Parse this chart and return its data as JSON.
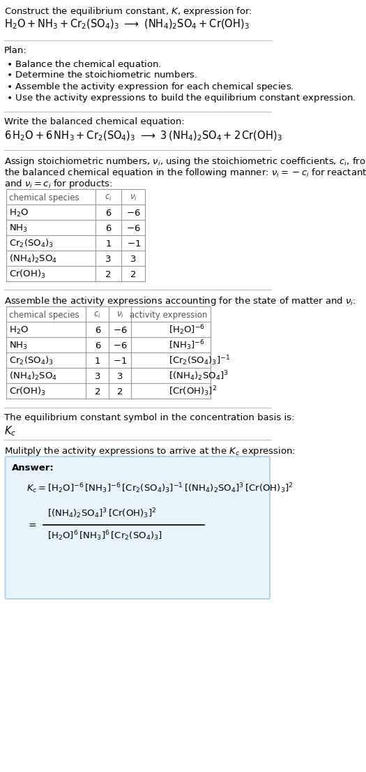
{
  "bg_color": "#ffffff",
  "text_color": "#000000",
  "gray_text": "#555555",
  "title_line1": "Construct the equilibrium constant, $K$, expression for:",
  "title_line2": "$\\mathrm{H_2O + NH_3 + Cr_2(SO_4)_3 \\longrightarrow (NH_4)_2SO_4 + Cr(OH)_3}$",
  "plan_header": "Plan:",
  "plan_items": [
    "\\textbf{\\textperiodcentered} Balance the chemical equation.",
    "\\textbf{\\textperiodcentered} Determine the stoichiometric numbers.",
    "\\textbf{\\textperiodcentered} Assemble the activity expression for each chemical species.",
    "\\textbf{\\textperiodcentered} Use the activity expressions to build the equilibrium constant expression."
  ],
  "balanced_eq_header": "Write the balanced chemical equation:",
  "balanced_eq": "$6\\,\\mathrm{H_2O + 6\\,NH_3 + Cr_2(SO_4)_3 \\longrightarrow 3\\,(NH_4)_2SO_4 + 2\\,Cr(OH)_3}$",
  "stoich_header": "Assign stoichiometric numbers, $\\nu_i$, using the stoichiometric coefficients, $c_i$, from the balanced chemical equation in the following manner: $\\nu_i = -c_i$ for reactants and $\\nu_i = c_i$ for products:",
  "table1_headers": [
    "chemical species",
    "$c_i$",
    "$\\nu_i$"
  ],
  "table1_rows": [
    [
      "$\\mathrm{H_2O}$",
      "6",
      "$-6$"
    ],
    [
      "$\\mathrm{NH_3}$",
      "6",
      "$-6$"
    ],
    [
      "$\\mathrm{Cr_2(SO_4)_3}$",
      "1",
      "$-1$"
    ],
    [
      "$\\mathrm{(NH_4)_2SO_4}$",
      "3",
      "3"
    ],
    [
      "$\\mathrm{Cr(OH)_3}$",
      "2",
      "2"
    ]
  ],
  "activity_header": "Assemble the activity expressions accounting for the state of matter and $\\nu_i$:",
  "table2_headers": [
    "chemical species",
    "$c_i$",
    "$\\nu_i$",
    "activity expression"
  ],
  "table2_rows": [
    [
      "$\\mathrm{H_2O}$",
      "6",
      "$-6$",
      "$[\\mathrm{H_2O}]^{-6}$"
    ],
    [
      "$\\mathrm{NH_3}$",
      "6",
      "$-6$",
      "$[\\mathrm{NH_3}]^{-6}$"
    ],
    [
      "$\\mathrm{Cr_2(SO_4)_3}$",
      "1",
      "$-1$",
      "$[\\mathrm{Cr_2(SO_4)_3}]^{-1}$"
    ],
    [
      "$\\mathrm{(NH_4)_2SO_4}$",
      "3",
      "3",
      "$[\\mathrm{(NH_4)_2SO_4}]^{3}$"
    ],
    [
      "$\\mathrm{Cr(OH)_3}$",
      "2",
      "2",
      "$[\\mathrm{Cr(OH)_3}]^{2}$"
    ]
  ],
  "kc_header": "The equilibrium constant symbol in the concentration basis is:",
  "kc_symbol": "$K_c$",
  "multiply_header": "Mulitply the activity expressions to arrive at the $K_c$ expression:",
  "answer_line1": "$K_c = [\\mathrm{H_2O}]^{-6}\\,[\\mathrm{NH_3}]^{-6}\\,[\\mathrm{Cr_2(SO_4)_3}]^{-1}\\,[(\\mathrm{NH_4})_2\\mathrm{SO_4}]^{3}\\,[\\mathrm{Cr(OH)_3}]^{2}$",
  "answer_line2_num": "$[(\\mathrm{NH_4})_2\\mathrm{SO_4}]^{3}\\,[\\mathrm{Cr(OH)_3}]^{2}$",
  "answer_line2_den": "$[\\mathrm{H_2O}]^{6}\\,[\\mathrm{NH_3}]^{6}\\,[\\mathrm{Cr_2(SO_4)_3}]$",
  "answer_box_color": "#e8f4fc",
  "answer_box_border": "#aaccee"
}
